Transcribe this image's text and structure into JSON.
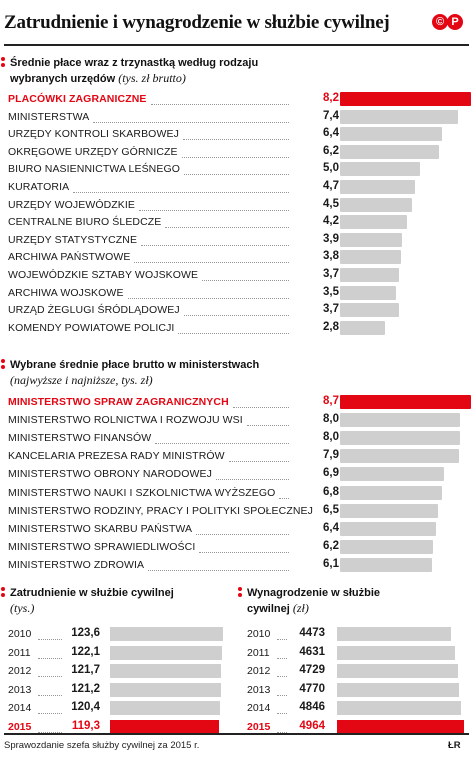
{
  "title": "Zatrudnienie i wynagrodzenie w służbie cywilnej",
  "logo": [
    "©",
    "P"
  ],
  "section1": {
    "title_line1": "Średnie płace wraz z trzynastką według rodzaju",
    "title_line2": "wybranych urzędów",
    "subtitle": "(tys. zł brutto)"
  },
  "section2": {
    "title": "Wybrane średnie płace brutto w ministerstwach",
    "subtitle": "(najwyższe i najniższe, tys. zł)"
  },
  "section3": {
    "title": "Zatrudnienie w służbie cywilnej",
    "subtitle": "(tys.)"
  },
  "section4": {
    "title_line1": "Wynagrodzenie w służbie",
    "title_line2": "cywilnej",
    "subtitle": "(zł)"
  },
  "footer": "Sprawozdanie szefa służby cywilnej za 2015 r.",
  "credit": "ŁR",
  "colors": {
    "accent": "#e30613",
    "bar": "#cfcfcf"
  },
  "chart_data": [
    {
      "type": "bar",
      "title": "Średnie płace wraz z trzynastką według rodzaju wybranych urzędów",
      "unit": "tys. zł brutto",
      "categories": [
        "PLACÓWKI ZAGRANICZNE",
        "MINISTERSTWA",
        "URZĘDY KONTROLI SKARBOWEJ",
        "OKRĘGOWE URZĘDY GÓRNICZE",
        "BIURO NASIENNICTWA LEŚNEGO",
        "KURATORIA",
        "URZĘDY WOJEWÓDZKIE",
        "CENTRALNE BIURO ŚLEDCZE",
        "URZĘDY STATYSTYCZNE",
        "ARCHIWA PAŃSTWOWE",
        "WOJEWÓDZKIE SZTABY WOJSKOWE",
        "ARCHIWA WOJSKOWE",
        "URZĄD ŻEGLUGI ŚRÓDLĄDOWEJ",
        "KOMENDY POWIATOWE POLICJI"
      ],
      "values": [
        8.2,
        7.4,
        6.4,
        6.2,
        5.0,
        4.7,
        4.5,
        4.2,
        3.9,
        3.8,
        3.7,
        3.5,
        3.7,
        2.8
      ],
      "labels": [
        "8,2",
        "7,4",
        "6,4",
        "6,2",
        "5,0",
        "4,7",
        "4,5",
        "4,2",
        "3,9",
        "3,8",
        "3,7",
        "3,5",
        "3,7",
        "2,8"
      ],
      "highlight": [
        0
      ],
      "ylim": [
        0,
        8.2
      ]
    },
    {
      "type": "bar",
      "title": "Wybrane średnie płace brutto w ministerstwach",
      "unit": "tys. zł",
      "categories": [
        "MINISTERSTWO SPRAW ZAGRANICZNYCH",
        "MINISTERSTWO ROLNICTWA I ROZWOJU WSI",
        "MINISTERSTWO FINANSÓW",
        "KANCELARIA PREZESA RADY MINISTRÓW",
        "MINISTERSTWO OBRONY NARODOWEJ",
        "MINISTERSTWO NAUKI I SZKOLNICTWA WYŻSZEGO",
        "MINISTERSTWO RODZINY, PRACY I POLITYKI SPOŁECZNEJ",
        "MINISTERSTWO SKARBU PAŃSTWA",
        "MINISTERSTWO SPRAWIEDLIWOŚCI",
        "MINISTERSTWO ZDROWIA"
      ],
      "values": [
        8.7,
        8.0,
        8.0,
        7.9,
        6.9,
        6.8,
        6.5,
        6.4,
        6.2,
        6.1
      ],
      "labels": [
        "8,7",
        "8,0",
        "8,0",
        "7,9",
        "6,9",
        "6,8",
        "6,5",
        "6,4",
        "6,2",
        "6,1"
      ],
      "highlight": [
        0
      ],
      "ylim": [
        0,
        8.7
      ]
    },
    {
      "type": "bar",
      "title": "Zatrudnienie w służbie cywilnej",
      "unit": "tys.",
      "categories": [
        "2010",
        "2011",
        "2012",
        "2013",
        "2014",
        "2015"
      ],
      "values": [
        123.6,
        122.1,
        121.7,
        121.2,
        120.4,
        119.3
      ],
      "labels": [
        "123,6",
        "122,1",
        "121,7",
        "121,2",
        "120,4",
        "119,3"
      ],
      "highlight": [
        5
      ],
      "ylim": [
        0,
        123.6
      ]
    },
    {
      "type": "bar",
      "title": "Wynagrodzenie w służbie cywilnej",
      "unit": "zł",
      "categories": [
        "2010",
        "2011",
        "2012",
        "2013",
        "2014",
        "2015"
      ],
      "values": [
        4473,
        4631,
        4729,
        4770,
        4846,
        4964
      ],
      "labels": [
        "4473",
        "4631",
        "4729",
        "4770",
        "4846",
        "4964"
      ],
      "highlight": [
        5
      ],
      "ylim": [
        0,
        4964
      ]
    }
  ]
}
